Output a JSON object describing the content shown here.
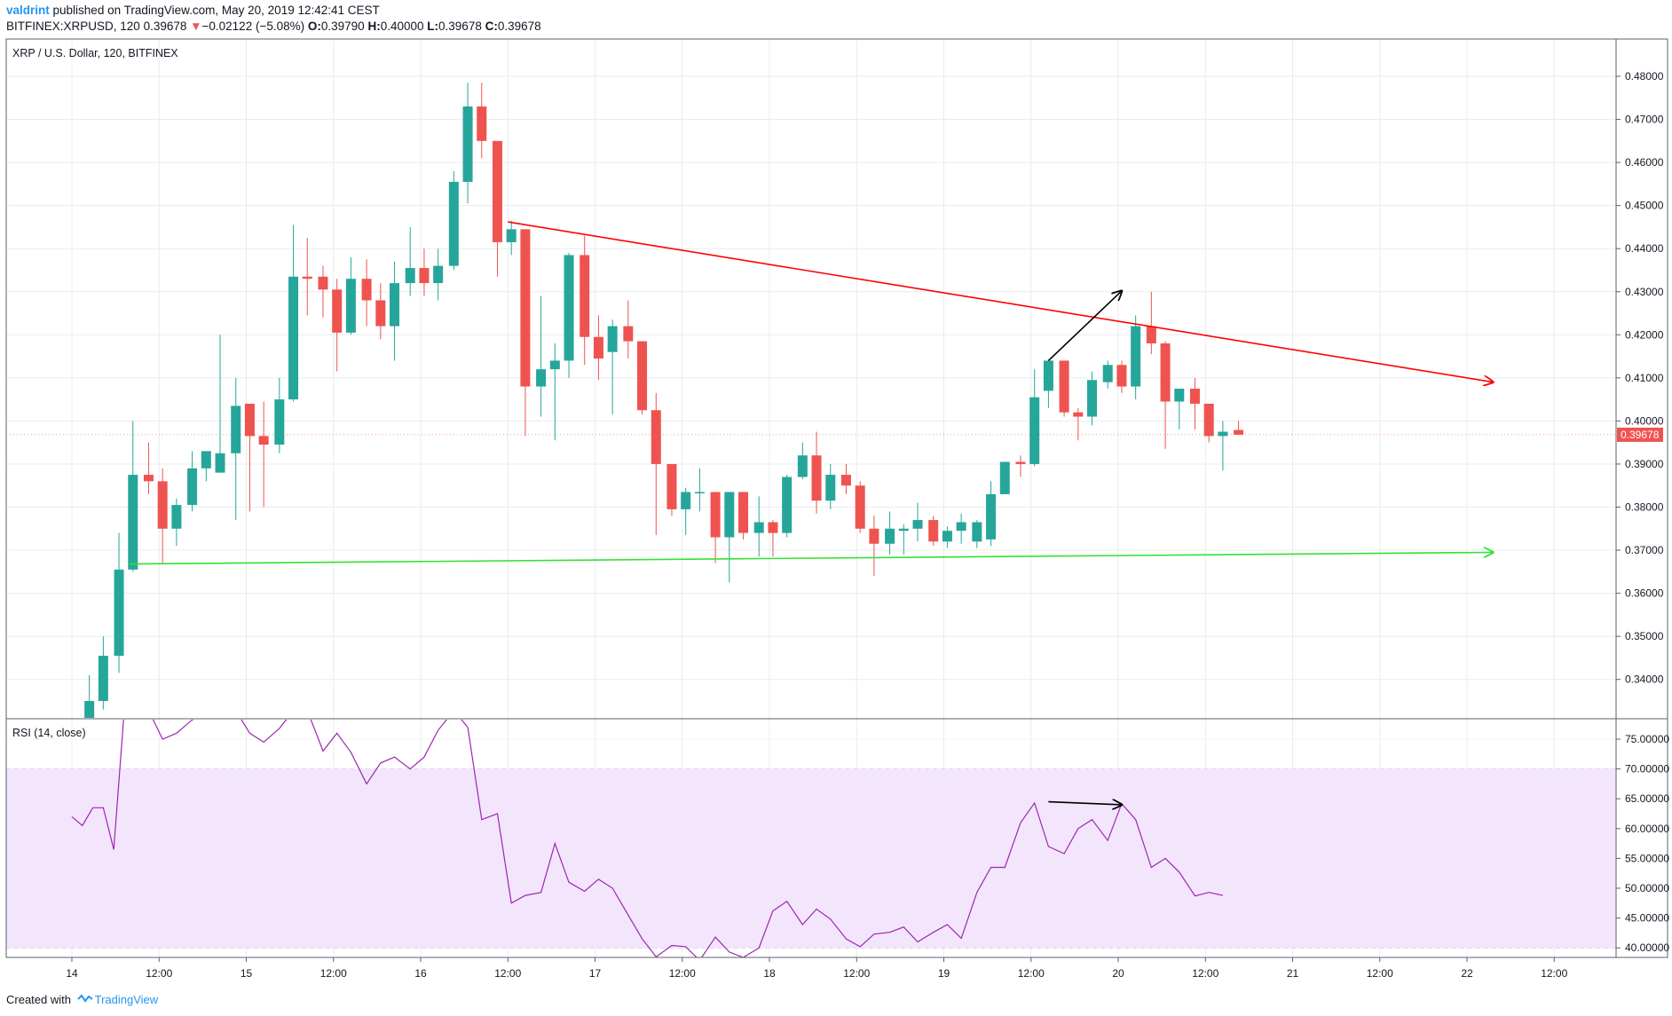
{
  "header": {
    "author": "valdrint",
    "published_text": "published on TradingView.com, May 20, 2019 12:42:41 CEST",
    "symbol_interval": "BITFINEX:XRPUSD, 120",
    "last_price": "0.39678",
    "change_arrow": "▼",
    "change": "−0.02122 (−5.08%)",
    "o_label": "O:",
    "o_value": "0.39790",
    "h_label": "H:",
    "h_value": "0.40000",
    "l_label": "L:",
    "l_value": "0.39678",
    "c_label": "C:",
    "c_value": "0.39678"
  },
  "footer": {
    "created_with": "Created with",
    "brand": "TradingView"
  },
  "colors": {
    "up": "#26a69a",
    "down": "#ef5350",
    "resistance": "#ff0000",
    "support": "#33e133",
    "rsi_line": "#9c27b0",
    "rsi_band": "#f3e5fc",
    "grid": "#e8ecf0",
    "price_tag": "#ef5350"
  },
  "chart_data": [
    {
      "type": "candlestick",
      "title": "XRP / U.S. Dollar, 120, BITFINEX",
      "ylim": [
        0.3305,
        0.4875
      ],
      "y_ticks": [
        "0.48000",
        "0.47000",
        "0.46000",
        "0.45000",
        "0.44000",
        "0.43000",
        "0.42000",
        "0.41000",
        "0.40000",
        "0.39000",
        "0.38000",
        "0.37000",
        "0.36000",
        "0.35000",
        "0.34000"
      ],
      "x_ticks": [
        "14",
        "12:00",
        "15",
        "12:00",
        "16",
        "12:00",
        "17",
        "12:00",
        "18",
        "12:00",
        "19",
        "12:00",
        "20",
        "12:00",
        "21",
        "12:00",
        "22",
        "12:00"
      ],
      "last_price_label": "0.39678",
      "candles": [
        {
          "t": 14.1,
          "o": 0.331,
          "h": 0.341,
          "l": 0.33,
          "c": 0.335
        },
        {
          "t": 14.18,
          "o": 0.335,
          "h": 0.35,
          "l": 0.333,
          "c": 0.3455
        },
        {
          "t": 14.27,
          "o": 0.3455,
          "h": 0.374,
          "l": 0.3415,
          "c": 0.3655
        },
        {
          "t": 14.35,
          "o": 0.3655,
          "h": 0.4,
          "l": 0.365,
          "c": 0.3875
        },
        {
          "t": 14.44,
          "o": 0.3875,
          "h": 0.395,
          "l": 0.383,
          "c": 0.386
        },
        {
          "t": 14.52,
          "o": 0.386,
          "h": 0.389,
          "l": 0.3668,
          "c": 0.375
        },
        {
          "t": 14.6,
          "o": 0.375,
          "h": 0.382,
          "l": 0.371,
          "c": 0.3805
        },
        {
          "t": 14.69,
          "o": 0.3805,
          "h": 0.393,
          "l": 0.379,
          "c": 0.389
        },
        {
          "t": 14.77,
          "o": 0.389,
          "h": 0.393,
          "l": 0.386,
          "c": 0.393
        },
        {
          "t": 14.85,
          "o": 0.388,
          "h": 0.42,
          "l": 0.388,
          "c": 0.3925
        },
        {
          "t": 14.94,
          "o": 0.3925,
          "h": 0.41,
          "l": 0.377,
          "c": 0.4035
        },
        {
          "t": 15.02,
          "o": 0.404,
          "h": 0.404,
          "l": 0.379,
          "c": 0.3965
        },
        {
          "t": 15.1,
          "o": 0.3965,
          "h": 0.4045,
          "l": 0.38,
          "c": 0.3945
        },
        {
          "t": 15.19,
          "o": 0.3945,
          "h": 0.41,
          "l": 0.3925,
          "c": 0.405
        },
        {
          "t": 15.27,
          "o": 0.405,
          "h": 0.4455,
          "l": 0.4045,
          "c": 0.4335
        },
        {
          "t": 15.35,
          "o": 0.4335,
          "h": 0.4425,
          "l": 0.4245,
          "c": 0.433
        },
        {
          "t": 15.44,
          "o": 0.4335,
          "h": 0.436,
          "l": 0.424,
          "c": 0.4305
        },
        {
          "t": 15.52,
          "o": 0.4305,
          "h": 0.433,
          "l": 0.4115,
          "c": 0.4205
        },
        {
          "t": 15.6,
          "o": 0.4205,
          "h": 0.438,
          "l": 0.42,
          "c": 0.433
        },
        {
          "t": 15.69,
          "o": 0.433,
          "h": 0.4375,
          "l": 0.422,
          "c": 0.428
        },
        {
          "t": 15.77,
          "o": 0.428,
          "h": 0.432,
          "l": 0.419,
          "c": 0.422
        },
        {
          "t": 15.85,
          "o": 0.422,
          "h": 0.437,
          "l": 0.414,
          "c": 0.432
        },
        {
          "t": 15.94,
          "o": 0.432,
          "h": 0.445,
          "l": 0.429,
          "c": 0.4355
        },
        {
          "t": 16.02,
          "o": 0.4355,
          "h": 0.44,
          "l": 0.429,
          "c": 0.432
        },
        {
          "t": 16.1,
          "o": 0.432,
          "h": 0.44,
          "l": 0.428,
          "c": 0.436
        },
        {
          "t": 16.19,
          "o": 0.436,
          "h": 0.458,
          "l": 0.435,
          "c": 0.4555
        },
        {
          "t": 16.27,
          "o": 0.4555,
          "h": 0.4785,
          "l": 0.4505,
          "c": 0.473
        },
        {
          "t": 16.35,
          "o": 0.473,
          "h": 0.4785,
          "l": 0.461,
          "c": 0.465
        },
        {
          "t": 16.44,
          "o": 0.465,
          "h": 0.465,
          "l": 0.4335,
          "c": 0.4415
        },
        {
          "t": 16.52,
          "o": 0.4415,
          "h": 0.4465,
          "l": 0.4385,
          "c": 0.4445
        },
        {
          "t": 16.6,
          "o": 0.4445,
          "h": 0.4445,
          "l": 0.3965,
          "c": 0.408
        },
        {
          "t": 16.69,
          "o": 0.408,
          "h": 0.429,
          "l": 0.401,
          "c": 0.412
        },
        {
          "t": 16.77,
          "o": 0.412,
          "h": 0.418,
          "l": 0.3955,
          "c": 0.414
        },
        {
          "t": 16.85,
          "o": 0.414,
          "h": 0.439,
          "l": 0.41,
          "c": 0.4385
        },
        {
          "t": 16.94,
          "o": 0.4385,
          "h": 0.443,
          "l": 0.413,
          "c": 0.4195
        },
        {
          "t": 17.02,
          "o": 0.4195,
          "h": 0.4245,
          "l": 0.4095,
          "c": 0.4145
        },
        {
          "t": 17.1,
          "o": 0.416,
          "h": 0.4235,
          "l": 0.4015,
          "c": 0.422
        },
        {
          "t": 17.19,
          "o": 0.422,
          "h": 0.428,
          "l": 0.4145,
          "c": 0.4185
        },
        {
          "t": 17.27,
          "o": 0.4185,
          "h": 0.4185,
          "l": 0.4015,
          "c": 0.4025
        },
        {
          "t": 17.35,
          "o": 0.4025,
          "h": 0.4065,
          "l": 0.3735,
          "c": 0.39
        },
        {
          "t": 17.44,
          "o": 0.39,
          "h": 0.39,
          "l": 0.378,
          "c": 0.3795
        },
        {
          "t": 17.52,
          "o": 0.3795,
          "h": 0.3845,
          "l": 0.3735,
          "c": 0.3835
        },
        {
          "t": 17.6,
          "o": 0.3835,
          "h": 0.389,
          "l": 0.379,
          "c": 0.3835
        },
        {
          "t": 17.69,
          "o": 0.3835,
          "h": 0.3835,
          "l": 0.367,
          "c": 0.373
        },
        {
          "t": 17.77,
          "o": 0.373,
          "h": 0.3835,
          "l": 0.3625,
          "c": 0.3835
        },
        {
          "t": 17.85,
          "o": 0.3835,
          "h": 0.3835,
          "l": 0.3725,
          "c": 0.374
        },
        {
          "t": 17.94,
          "o": 0.374,
          "h": 0.3825,
          "l": 0.3685,
          "c": 0.3765
        },
        {
          "t": 18.02,
          "o": 0.3765,
          "h": 0.377,
          "l": 0.3685,
          "c": 0.374
        },
        {
          "t": 18.1,
          "o": 0.374,
          "h": 0.3875,
          "l": 0.373,
          "c": 0.387
        },
        {
          "t": 18.19,
          "o": 0.387,
          "h": 0.395,
          "l": 0.3865,
          "c": 0.392
        },
        {
          "t": 18.27,
          "o": 0.392,
          "h": 0.3975,
          "l": 0.3785,
          "c": 0.3815
        },
        {
          "t": 18.35,
          "o": 0.3815,
          "h": 0.39,
          "l": 0.3795,
          "c": 0.3875
        },
        {
          "t": 18.44,
          "o": 0.3875,
          "h": 0.39,
          "l": 0.383,
          "c": 0.385
        },
        {
          "t": 18.52,
          "o": 0.385,
          "h": 0.386,
          "l": 0.374,
          "c": 0.375
        },
        {
          "t": 18.6,
          "o": 0.375,
          "h": 0.378,
          "l": 0.364,
          "c": 0.3715
        },
        {
          "t": 18.69,
          "o": 0.3715,
          "h": 0.379,
          "l": 0.369,
          "c": 0.375
        },
        {
          "t": 18.77,
          "o": 0.3745,
          "h": 0.376,
          "l": 0.369,
          "c": 0.375
        },
        {
          "t": 18.85,
          "o": 0.375,
          "h": 0.381,
          "l": 0.372,
          "c": 0.377
        },
        {
          "t": 18.94,
          "o": 0.377,
          "h": 0.378,
          "l": 0.371,
          "c": 0.372
        },
        {
          "t": 19.02,
          "o": 0.372,
          "h": 0.3755,
          "l": 0.3705,
          "c": 0.3745
        },
        {
          "t": 19.1,
          "o": 0.3745,
          "h": 0.3785,
          "l": 0.3715,
          "c": 0.3765
        },
        {
          "t": 19.19,
          "o": 0.372,
          "h": 0.377,
          "l": 0.3705,
          "c": 0.3765
        },
        {
          "t": 19.27,
          "o": 0.3725,
          "h": 0.386,
          "l": 0.371,
          "c": 0.383
        },
        {
          "t": 19.35,
          "o": 0.383,
          "h": 0.3905,
          "l": 0.383,
          "c": 0.3905
        },
        {
          "t": 19.44,
          "o": 0.3905,
          "h": 0.392,
          "l": 0.387,
          "c": 0.39
        },
        {
          "t": 19.52,
          "o": 0.39,
          "h": 0.412,
          "l": 0.3895,
          "c": 0.4055
        },
        {
          "t": 19.6,
          "o": 0.407,
          "h": 0.414,
          "l": 0.403,
          "c": 0.414
        },
        {
          "t": 19.69,
          "o": 0.414,
          "h": 0.414,
          "l": 0.401,
          "c": 0.402
        },
        {
          "t": 19.77,
          "o": 0.402,
          "h": 0.403,
          "l": 0.3955,
          "c": 0.401
        },
        {
          "t": 19.85,
          "o": 0.401,
          "h": 0.4115,
          "l": 0.399,
          "c": 0.4095
        },
        {
          "t": 19.94,
          "o": 0.409,
          "h": 0.414,
          "l": 0.4075,
          "c": 0.413
        },
        {
          "t": 20.02,
          "o": 0.413,
          "h": 0.414,
          "l": 0.4065,
          "c": 0.408
        },
        {
          "t": 20.1,
          "o": 0.408,
          "h": 0.4245,
          "l": 0.405,
          "c": 0.422
        },
        {
          "t": 20.19,
          "o": 0.422,
          "h": 0.43,
          "l": 0.4155,
          "c": 0.418
        },
        {
          "t": 20.27,
          "o": 0.418,
          "h": 0.4185,
          "l": 0.3935,
          "c": 0.4045
        },
        {
          "t": 20.35,
          "o": 0.4045,
          "h": 0.4075,
          "l": 0.398,
          "c": 0.4075
        },
        {
          "t": 20.44,
          "o": 0.4075,
          "h": 0.41,
          "l": 0.398,
          "c": 0.404
        },
        {
          "t": 20.52,
          "o": 0.404,
          "h": 0.404,
          "l": 0.395,
          "c": 0.3965
        },
        {
          "t": 20.6,
          "o": 0.3965,
          "h": 0.4,
          "l": 0.3885,
          "c": 0.3975
        },
        {
          "t": 20.69,
          "o": 0.3979,
          "h": 0.4,
          "l": 0.3968,
          "c": 0.3968
        }
      ],
      "trendlines": [
        {
          "name": "resistance",
          "color": "#ff0000",
          "from": [
            16.5,
            0.4462
          ],
          "to": [
            22.15,
            0.409
          ],
          "arrow": true
        },
        {
          "name": "support",
          "color": "#33e133",
          "from": [
            14.33,
            0.3668
          ],
          "to": [
            22.15,
            0.3695
          ],
          "arrow": true
        },
        {
          "name": "price-up-arrow",
          "color": "#000000",
          "from": [
            19.6,
            0.414
          ],
          "to": [
            20.02,
            0.4302
          ],
          "arrow": true
        }
      ]
    },
    {
      "type": "line",
      "title": "RSI (14, close)",
      "ylim": [
        37.9,
        79.6
      ],
      "y_ticks": [
        "75.00000",
        "70.00000",
        "65.00000",
        "60.00000",
        "55.00000",
        "50.00000",
        "45.00000",
        "40.00000"
      ],
      "band": [
        40,
        70
      ],
      "x": [
        14.0,
        14.02,
        14.06,
        14.12,
        14.18,
        14.24,
        14.3,
        14.35,
        14.44,
        14.52,
        14.6,
        14.68,
        14.77,
        14.85,
        14.94,
        15.02,
        15.1,
        15.19,
        15.27,
        15.35,
        15.44,
        15.52,
        15.6,
        15.69,
        15.77,
        15.85,
        15.94,
        16.02,
        16.1,
        16.19,
        16.27,
        16.35,
        16.44,
        16.52,
        16.6,
        16.69,
        16.77,
        16.85,
        16.94,
        17.02,
        17.1,
        17.19,
        17.27,
        17.35,
        17.44,
        17.52,
        17.6,
        17.69,
        17.77,
        17.85,
        17.94,
        18.02,
        18.1,
        18.19,
        18.27,
        18.35,
        18.44,
        18.52,
        18.6,
        18.69,
        18.77,
        18.85,
        18.94,
        19.02,
        19.1,
        19.19,
        19.27,
        19.35,
        19.44,
        19.52,
        19.6,
        19.69,
        19.77,
        19.85,
        19.94,
        20.02,
        20.1,
        20.19,
        20.27,
        20.35,
        20.44,
        20.52,
        20.6,
        20.69
      ],
      "y": [
        62.0,
        61.5,
        60.5,
        63.5,
        63.5,
        56.5,
        79.8,
        79.8,
        79.8,
        75.0,
        76.0,
        78.0,
        79.8,
        79.8,
        79.8,
        76.0,
        74.5,
        76.8,
        79.8,
        79.8,
        73.0,
        76.0,
        72.8,
        67.5,
        71.0,
        72.0,
        70.0,
        72.0,
        76.5,
        79.8,
        77.0,
        61.5,
        62.5,
        47.5,
        48.8,
        49.3,
        57.5,
        51.0,
        49.5,
        51.5,
        50.0,
        45.5,
        41.5,
        38.5,
        40.4,
        40.2,
        37.9,
        41.8,
        39.3,
        38.4,
        40.0,
        46.2,
        47.8,
        43.9,
        46.5,
        44.8,
        41.5,
        40.2,
        42.3,
        42.6,
        43.5,
        41.0,
        42.6,
        43.9,
        41.6,
        49.3,
        53.5,
        53.5,
        61.0,
        64.3,
        57.0,
        55.8,
        60.0,
        61.5,
        58.0,
        64.2,
        61.5,
        53.5,
        55.0,
        52.7,
        48.7,
        49.3,
        48.8,
        null
      ],
      "divergence_arrow": {
        "from": [
          19.6,
          64.5
        ],
        "to": [
          20.02,
          64.0
        ]
      }
    }
  ]
}
